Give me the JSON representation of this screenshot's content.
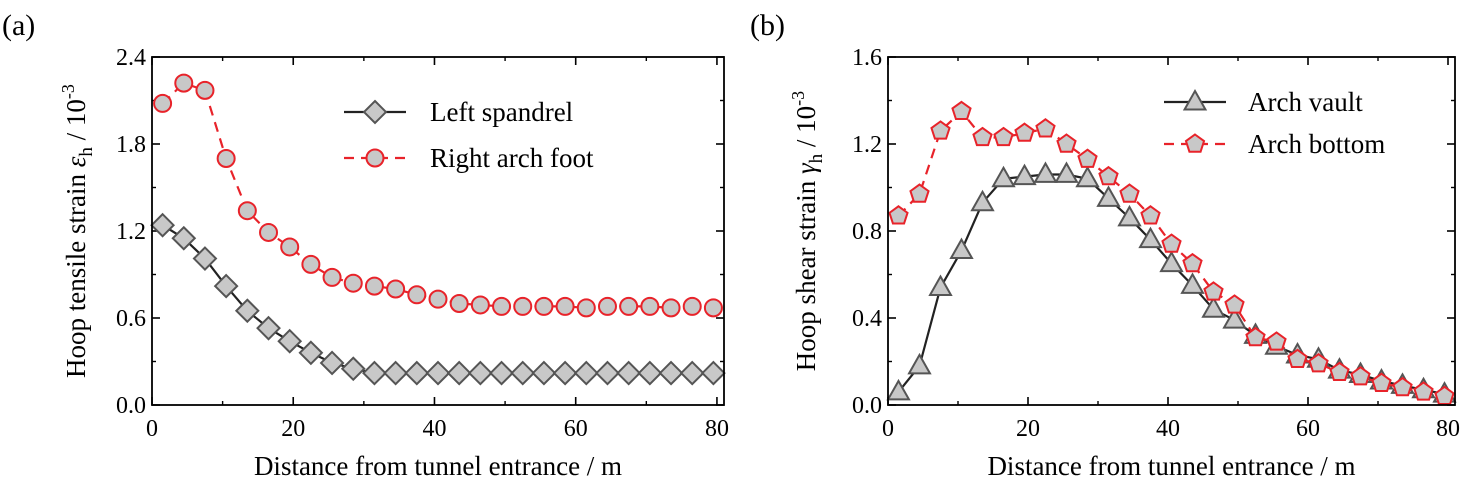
{
  "chart_data": [
    {
      "panel_label": "(a)",
      "type": "line",
      "xlabel": "Distance from tunnel entrance / m",
      "ylabel_prefix": "Hoop tensile strain ",
      "ylabel_symbol": "ε",
      "ylabel_subscript": "h",
      "ylabel_suffix": " / 10",
      "ylabel_exponent": "-3",
      "xlim": [
        0,
        81
      ],
      "ylim": [
        0,
        2.4
      ],
      "xticks": [
        0,
        20,
        40,
        60,
        80
      ],
      "yticks": [
        0,
        0.6,
        1.2,
        1.8,
        2.4
      ],
      "xtick_labels": [
        "0",
        "20",
        "40",
        "60",
        "80"
      ],
      "ytick_labels": [
        "0.0",
        "0.6",
        "1.2",
        "1.8",
        "2.4"
      ],
      "legend_position": "top-right",
      "series": [
        {
          "name": "Left spandrel",
          "marker": "diamond",
          "line": "solid",
          "line_color": "#222222",
          "marker_fill": "#c8c8c8",
          "marker_stroke": "#555555",
          "x": [
            1.5,
            4.5,
            7.5,
            10.5,
            13.5,
            16.5,
            19.5,
            22.5,
            25.5,
            28.5,
            31.5,
            34.5,
            37.5,
            40.5,
            43.5,
            46.5,
            49.5,
            52.5,
            55.5,
            58.5,
            61.5,
            64.5,
            67.5,
            70.5,
            73.5,
            76.5,
            79.5
          ],
          "values": [
            1.24,
            1.15,
            1.01,
            0.82,
            0.65,
            0.53,
            0.44,
            0.36,
            0.29,
            0.25,
            0.22,
            0.22,
            0.22,
            0.22,
            0.22,
            0.22,
            0.22,
            0.22,
            0.22,
            0.22,
            0.22,
            0.22,
            0.22,
            0.22,
            0.22,
            0.22,
            0.22
          ]
        },
        {
          "name": "Right arch foot",
          "marker": "circle",
          "line": "dashed",
          "line_color": "#e8232a",
          "marker_fill": "#c8c8c8",
          "marker_stroke": "#e8232a",
          "x": [
            1.5,
            4.5,
            7.5,
            10.5,
            13.5,
            16.5,
            19.5,
            22.5,
            25.5,
            28.5,
            31.5,
            34.5,
            37.5,
            40.5,
            43.5,
            46.5,
            49.5,
            52.5,
            55.5,
            58.5,
            61.5,
            64.5,
            67.5,
            70.5,
            73.5,
            76.5,
            79.5
          ],
          "values": [
            2.08,
            2.22,
            2.17,
            1.7,
            1.34,
            1.19,
            1.09,
            0.97,
            0.88,
            0.84,
            0.82,
            0.8,
            0.76,
            0.73,
            0.7,
            0.69,
            0.68,
            0.68,
            0.68,
            0.68,
            0.67,
            0.68,
            0.68,
            0.68,
            0.67,
            0.68,
            0.67
          ]
        }
      ]
    },
    {
      "panel_label": "(b)",
      "type": "line",
      "xlabel": "Distance from tunnel entrance / m",
      "ylabel_prefix": "Hoop shear strain ",
      "ylabel_symbol": "γ",
      "ylabel_subscript": "h",
      "ylabel_suffix": " / 10",
      "ylabel_exponent": "-3",
      "xlim": [
        0,
        81
      ],
      "ylim": [
        0,
        1.6
      ],
      "xticks": [
        0,
        20,
        40,
        60,
        80
      ],
      "yticks": [
        0,
        0.4,
        0.8,
        1.2,
        1.6
      ],
      "xtick_labels": [
        "0",
        "20",
        "40",
        "60",
        "80"
      ],
      "ytick_labels": [
        "0.0",
        "0.4",
        "0.8",
        "1.2",
        "1.6"
      ],
      "legend_position": "top-right",
      "series": [
        {
          "name": "Arch vault",
          "marker": "triangle",
          "line": "solid",
          "line_color": "#222222",
          "marker_fill": "#c8c8c8",
          "marker_stroke": "#555555",
          "x": [
            1.5,
            4.5,
            7.5,
            10.5,
            13.5,
            16.5,
            19.5,
            22.5,
            25.5,
            28.5,
            31.5,
            34.5,
            37.5,
            40.5,
            43.5,
            46.5,
            49.5,
            52.5,
            55.5,
            58.5,
            61.5,
            64.5,
            67.5,
            70.5,
            73.5,
            76.5,
            79.5
          ],
          "values": [
            0.06,
            0.18,
            0.54,
            0.71,
            0.93,
            1.04,
            1.05,
            1.06,
            1.06,
            1.04,
            0.95,
            0.86,
            0.76,
            0.65,
            0.55,
            0.44,
            0.39,
            0.32,
            0.27,
            0.23,
            0.21,
            0.16,
            0.14,
            0.11,
            0.09,
            0.07,
            0.05
          ]
        },
        {
          "name": "Arch bottom",
          "marker": "pentagon",
          "line": "dashed",
          "line_color": "#e8232a",
          "marker_fill": "#c8c8c8",
          "marker_stroke": "#e8232a",
          "x": [
            1.5,
            4.5,
            7.5,
            10.5,
            13.5,
            16.5,
            19.5,
            22.5,
            25.5,
            28.5,
            31.5,
            34.5,
            37.5,
            40.5,
            43.5,
            46.5,
            49.5,
            52.5,
            55.5,
            58.5,
            61.5,
            64.5,
            67.5,
            70.5,
            73.5,
            76.5,
            79.5
          ],
          "values": [
            0.87,
            0.97,
            1.26,
            1.35,
            1.23,
            1.23,
            1.25,
            1.27,
            1.2,
            1.13,
            1.05,
            0.97,
            0.87,
            0.74,
            0.65,
            0.52,
            0.46,
            0.31,
            0.29,
            0.21,
            0.19,
            0.15,
            0.13,
            0.1,
            0.08,
            0.06,
            0.04
          ]
        }
      ]
    }
  ]
}
